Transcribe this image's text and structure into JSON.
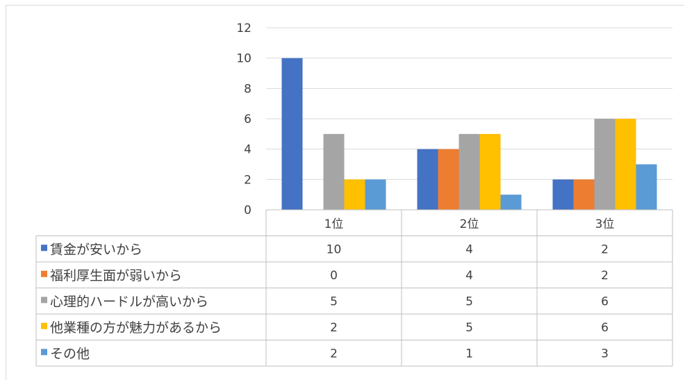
{
  "chart_data": {
    "type": "bar",
    "categories": [
      "1位",
      "2位",
      "3位"
    ],
    "series": [
      {
        "name": "賃金が安いから",
        "values": [
          10,
          4,
          2
        ],
        "color": "#4472C4"
      },
      {
        "name": "福利厚生面が弱いから",
        "values": [
          0,
          4,
          2
        ],
        "color": "#ED7D31"
      },
      {
        "name": "心理的ハードルが高いから",
        "values": [
          5,
          5,
          6
        ],
        "color": "#A5A5A5"
      },
      {
        "name": "他業種の方が魅力があるから",
        "values": [
          2,
          5,
          6
        ],
        "color": "#FFC000"
      },
      {
        "name": "その他",
        "values": [
          2,
          1,
          3
        ],
        "color": "#5B9BD5"
      }
    ],
    "y_ticks": [
      "0",
      "2",
      "4",
      "6",
      "8",
      "10",
      "12"
    ],
    "ylim": [
      0,
      12
    ],
    "grid": true,
    "legend": "data-table",
    "title": "",
    "xlabel": "",
    "ylabel": ""
  }
}
